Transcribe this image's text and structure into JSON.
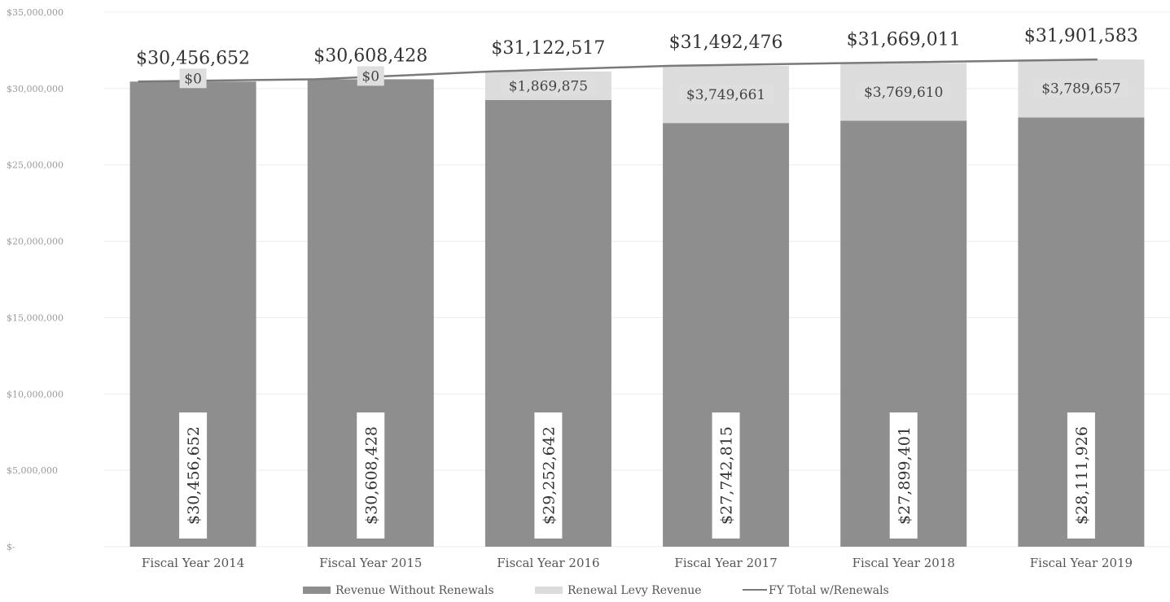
{
  "chart_data": {
    "type": "bar",
    "stacked": true,
    "categories": [
      "Fiscal Year 2014",
      "Fiscal Year 2015",
      "Fiscal Year 2016",
      "Fiscal Year 2017",
      "Fiscal Year 2018",
      "Fiscal Year 2019"
    ],
    "series": [
      {
        "name": "Revenue Without Renewals",
        "values": [
          30456652,
          30608428,
          29252642,
          27742815,
          27899401,
          28111926
        ],
        "labels": [
          "$30,456,652",
          "$30,608,428",
          "$29,252,642",
          "$27,742,815",
          "$27,899,401",
          "$28,111,926"
        ],
        "color": "#8e8e8e"
      },
      {
        "name": "Renewal Levy Revenue",
        "values": [
          0,
          0,
          1869875,
          3749661,
          3769610,
          3789657
        ],
        "labels": [
          "$0",
          "$0",
          "$1,869,875",
          "$3,749,661",
          "$3,769,610",
          "$3,789,657"
        ],
        "color": "#dcdcdc"
      },
      {
        "name": "FY Total w/Renewals",
        "type": "line",
        "values": [
          30456652,
          30608428,
          31122517,
          31492476,
          31669011,
          31901583
        ],
        "labels": [
          "$30,456,652",
          "$30,608,428",
          "$31,122,517",
          "$31,492,476",
          "$31,669,011",
          "$31,901,583"
        ],
        "color": "#7a7a7a"
      }
    ],
    "yticks": [
      0,
      5000000,
      10000000,
      15000000,
      20000000,
      25000000,
      30000000,
      35000000
    ],
    "ytick_labels": [
      "$-",
      "$5,000,000",
      "$10,000,000",
      "$15,000,000",
      "$20,000,000",
      "$25,000,000",
      "$30,000,000",
      "$35,000,000"
    ],
    "ylim": [
      0,
      35000000
    ],
    "legend": "bottom",
    "grid": true
  }
}
